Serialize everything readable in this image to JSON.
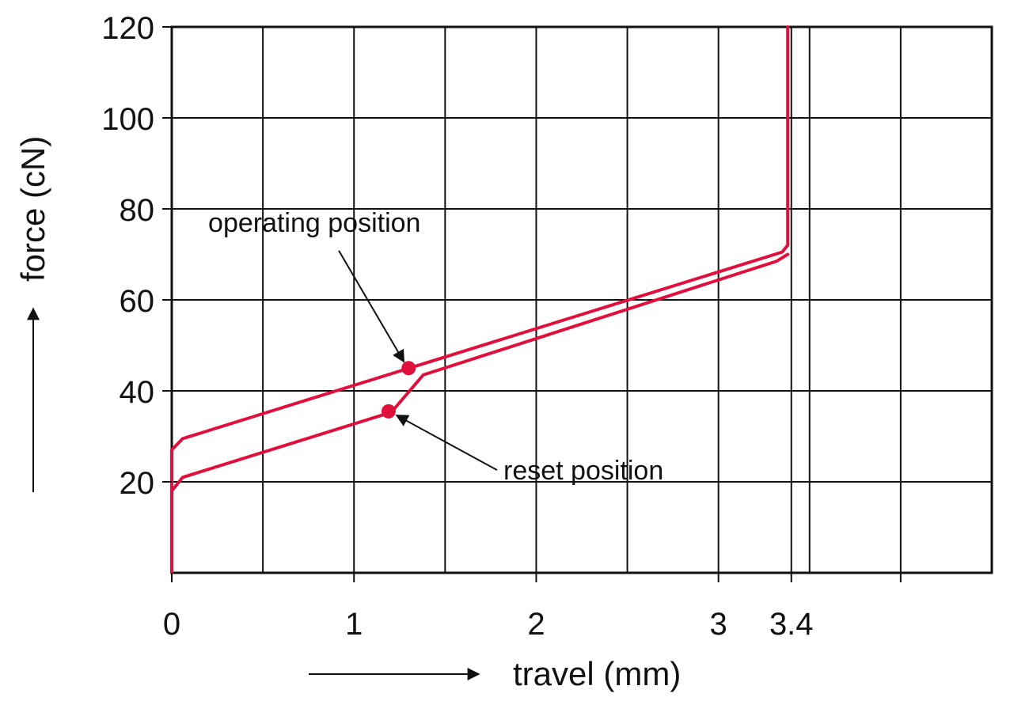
{
  "chart_data": {
    "type": "line",
    "xlabel": "travel (mm)",
    "ylabel": "force (cN)",
    "xlim": [
      0,
      4.5
    ],
    "ylim": [
      0,
      120
    ],
    "grid": true,
    "x_gridlines": [
      0,
      0.5,
      1,
      1.5,
      2,
      2.5,
      3,
      3.4,
      3.5,
      4,
      4.5
    ],
    "y_gridlines": [
      0,
      20,
      40,
      60,
      80,
      100,
      120
    ],
    "x_ticks": [
      {
        "value": 0,
        "label": "0"
      },
      {
        "value": 1,
        "label": "1"
      },
      {
        "value": 2,
        "label": "2"
      },
      {
        "value": 3,
        "label": "3"
      },
      {
        "value": 3.4,
        "label": "3.4"
      }
    ],
    "x_minor_ticks": [
      4
    ],
    "y_ticks": [
      {
        "value": 20,
        "label": "20"
      },
      {
        "value": 40,
        "label": "40"
      },
      {
        "value": 60,
        "label": "60"
      },
      {
        "value": 80,
        "label": "80"
      },
      {
        "value": 100,
        "label": "100"
      },
      {
        "value": 120,
        "label": "120"
      }
    ],
    "series": [
      {
        "color": "#e0103c",
        "points": [
          [
            0,
            0
          ],
          [
            0,
            27
          ],
          [
            0.06,
            29.5
          ],
          [
            3.35,
            70.5
          ],
          [
            3.38,
            72
          ],
          [
            3.38,
            120
          ]
        ]
      },
      {
        "color": "#e0103c",
        "points": [
          [
            0,
            0
          ],
          [
            0,
            18
          ],
          [
            0.06,
            21
          ],
          [
            1.18,
            35
          ],
          [
            1.22,
            36
          ],
          [
            1.38,
            43.5
          ],
          [
            3.32,
            68.5
          ],
          [
            3.38,
            70
          ]
        ]
      }
    ],
    "markers": [
      {
        "x": 1.3,
        "y": 45,
        "color": "#e0103c"
      },
      {
        "x": 1.19,
        "y": 35.5,
        "color": "#e0103c"
      }
    ],
    "annotations": [
      {
        "text": "operating position",
        "text_x": 0.2,
        "text_y": 75,
        "target": [
          1.3,
          45
        ]
      },
      {
        "text": "reset position",
        "text_x": 1.82,
        "text_y": 20.5,
        "target": [
          1.19,
          35.5
        ]
      }
    ]
  }
}
